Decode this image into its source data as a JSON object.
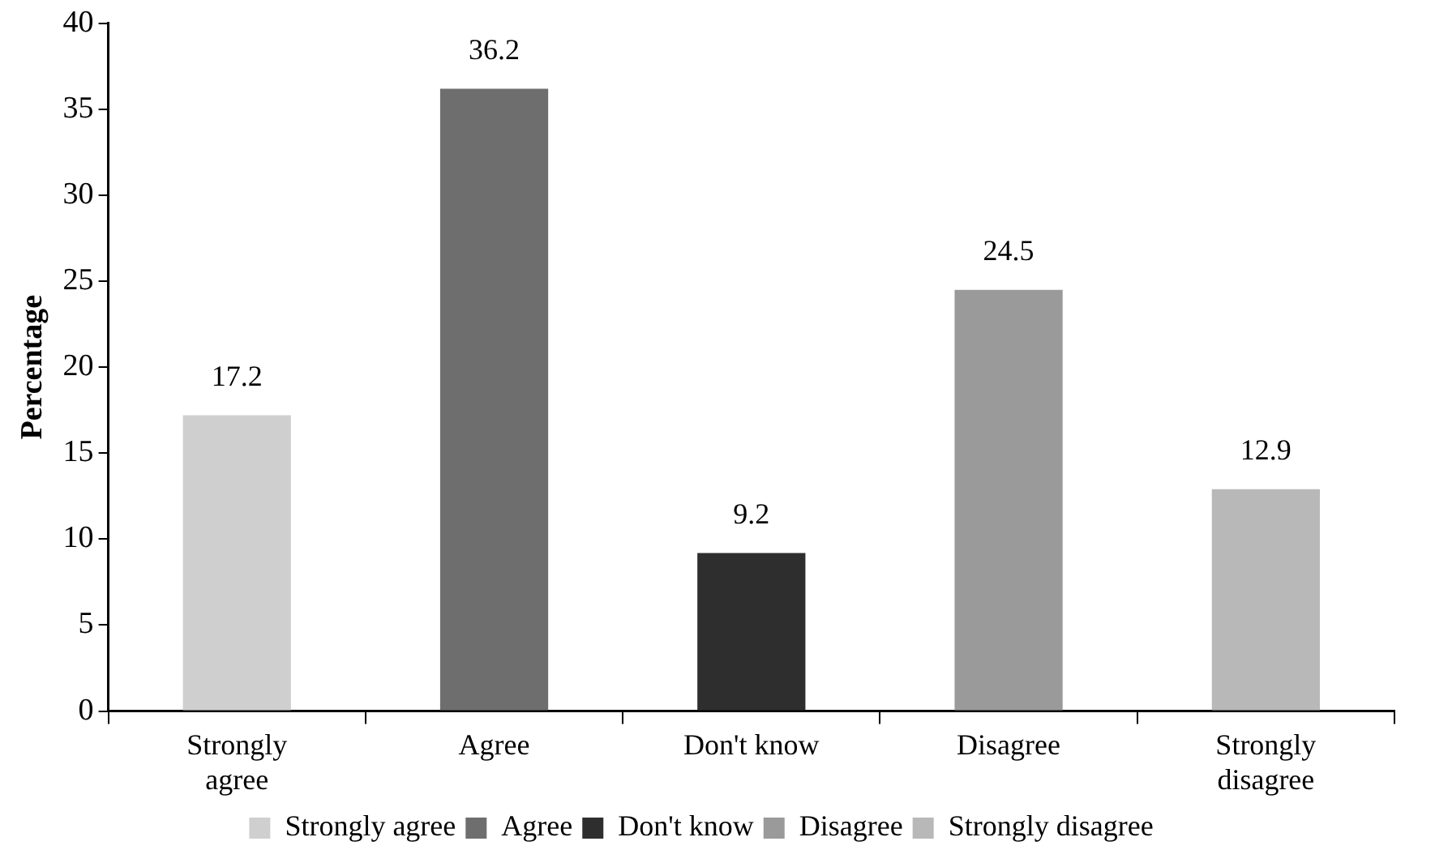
{
  "chart_data": {
    "type": "bar",
    "ylabel": "Percentage",
    "categories": [
      "Strongly agree",
      "Agree",
      "Don't know",
      "Disagree",
      "Strongly disagree"
    ],
    "series": [
      {
        "name": "Strongly agree",
        "color": "#cfcfcf",
        "values": [
          17.2,
          null,
          null,
          null,
          null
        ]
      },
      {
        "name": "Agree",
        "color": "#6e6e6e",
        "values": [
          null,
          36.2,
          null,
          null,
          null
        ]
      },
      {
        "name": "Don't know",
        "color": "#2e2e2e",
        "values": [
          null,
          null,
          9.2,
          null,
          null
        ]
      },
      {
        "name": "Disagree",
        "color": "#9a9a9a",
        "values": [
          null,
          null,
          null,
          24.5,
          null
        ]
      },
      {
        "name": "Strongly disagree",
        "color": "#b8b8b8",
        "values": [
          null,
          null,
          null,
          null,
          12.9
        ]
      }
    ],
    "ylim": [
      0,
      40
    ],
    "yticks": [
      0,
      5,
      10,
      15,
      20,
      25,
      30,
      35,
      40
    ],
    "data_labels": true,
    "legend": "bottom",
    "grid": false
  }
}
